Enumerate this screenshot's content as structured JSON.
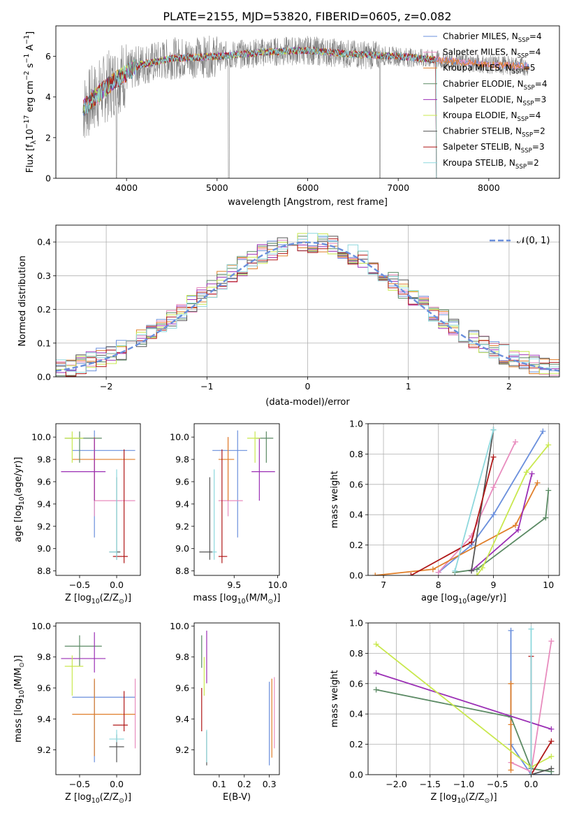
{
  "title": "PLATE=2155, MJD=53820, FIBERID=0605, z=0.082",
  "colors": {
    "chabrier_miles": "#6a8fdc",
    "salpeter_miles": "#e88cbe",
    "kroupa_miles": "#e07f2a",
    "chabrier_elodie": "#5b8a64",
    "salpeter_elodie": "#9b2fb5",
    "kroupa_elodie": "#c9e84e",
    "chabrier_stelib": "#555555",
    "salpeter_stelib": "#b01818",
    "kroupa_stelib": "#8ed8dd",
    "gaussian": "#6a8fdc",
    "data": "#808080"
  },
  "chart_data": [
    {
      "id": "spectrum",
      "type": "line",
      "xlabel": "wavelength [Angstrom, rest frame]",
      "ylabel_main": "Flux [f",
      "ylabel_sub": "λ",
      "ylabel_rest": "10",
      "ylabel_exp1": "−17",
      "ylabel_mid": " erg cm",
      "ylabel_exp2": "−2",
      "ylabel_mid2": " s",
      "ylabel_exp3": "−1",
      "ylabel_mid3": " A",
      "ylabel_exp4": "−1",
      "ylabel_end": "]",
      "xlim": [
        3220,
        8780
      ],
      "ylim": [
        0,
        7.5
      ],
      "xticks": [
        "4000",
        "5000",
        "6000",
        "7000",
        "8000"
      ],
      "yticks": [
        "0",
        "2",
        "4",
        "6"
      ],
      "grid": false,
      "legend_position": "top-right",
      "legend": [
        {
          "name": "Chabrier MILES, N",
          "sub": "SSP",
          "val": "=4",
          "color_key": "chabrier_miles"
        },
        {
          "name": "Salpeter MILES, N",
          "sub": "SSP",
          "val": "=4",
          "color_key": "salpeter_miles"
        },
        {
          "name": "Kroupa MILES, N",
          "sub": "SSP",
          "val": "=5",
          "color_key": "kroupa_miles"
        },
        {
          "name": "Chabrier ELODIE, N",
          "sub": "SSP",
          "val": "=4",
          "color_key": "chabrier_elodie"
        },
        {
          "name": "Salpeter ELODIE, N",
          "sub": "SSP",
          "val": "=3",
          "color_key": "salpeter_elodie"
        },
        {
          "name": "Kroupa ELODIE, N",
          "sub": "SSP",
          "val": "=4",
          "color_key": "kroupa_elodie"
        },
        {
          "name": "Chabrier STELIB, N",
          "sub": "SSP",
          "val": "=2",
          "color_key": "chabrier_stelib"
        },
        {
          "name": "Salpeter STELIB, N",
          "sub": "SSP",
          "val": "=3",
          "color_key": "salpeter_stelib"
        },
        {
          "name": "Kroupa STELIB, N",
          "sub": "SSP",
          "val": "=2",
          "color_key": "kroupa_stelib"
        }
      ],
      "data_range": [
        3520,
        8450
      ],
      "continuum": [
        [
          3520,
          3.4
        ],
        [
          3700,
          4.2
        ],
        [
          3900,
          4.9
        ],
        [
          4050,
          5.3
        ],
        [
          4150,
          5.6
        ],
        [
          4300,
          5.7
        ],
        [
          4500,
          5.9
        ],
        [
          5000,
          6.0
        ],
        [
          5500,
          6.2
        ],
        [
          6000,
          6.3
        ],
        [
          6500,
          6.1
        ],
        [
          7000,
          6.0
        ],
        [
          7500,
          5.8
        ],
        [
          8000,
          5.6
        ],
        [
          8450,
          5.5
        ]
      ]
    },
    {
      "id": "residuals",
      "type": "step",
      "xlabel": "(data-model)/error",
      "ylabel": "Normed distribution",
      "xlim": [
        -2.5,
        2.5
      ],
      "ylim": [
        0,
        0.45
      ],
      "xticks": [
        "−2",
        "−1",
        "0",
        "1",
        "2"
      ],
      "yticks": [
        "0.0",
        "0.1",
        "0.2",
        "0.3",
        "0.4"
      ],
      "grid": true,
      "legend_position": "top-right",
      "gaussian_label": "𝒩(0, 1)",
      "bin_width": 0.1
    },
    {
      "id": "age_vs_Z",
      "type": "scatter",
      "xlabel": "Z [log",
      "xlabel_sub": "10",
      "xlabel_rest": "(Z/Z",
      "xlabel_sun": "⊙",
      "xlabel_end": ")]",
      "ylabel": "age  [log",
      "ylabel_sub": "10",
      "ylabel_rest": "(age/yr)]",
      "xlim": [
        -0.82,
        0.32
      ],
      "ylim": [
        8.76,
        10.12
      ],
      "xticks": [
        "−0.5",
        "0.0"
      ],
      "yticks": [
        "8.8",
        "9.0",
        "9.2",
        "9.4",
        "9.6",
        "9.8",
        "10.0"
      ],
      "grid": false,
      "points": [
        {
          "c": "chabrier_miles",
          "x": -0.3,
          "xe": [
            -0.6,
            0.25
          ],
          "y": 9.88,
          "ye": [
            9.1,
            10.06
          ]
        },
        {
          "c": "salpeter_miles",
          "x": -0.3,
          "xe": [
            -0.3,
            0.25
          ],
          "y": 9.43,
          "ye": [
            9.29,
            10.0
          ]
        },
        {
          "c": "kroupa_miles",
          "x": -0.3,
          "xe": [
            -0.6,
            0.25
          ],
          "y": 9.8,
          "ye": [
            9.43,
            10.0
          ]
        },
        {
          "c": "chabrier_elodie",
          "x": -0.5,
          "xe": [
            -0.7,
            -0.2
          ],
          "y": 9.99,
          "ye": [
            9.77,
            10.05
          ]
        },
        {
          "c": "salpeter_elodie",
          "x": -0.3,
          "xe": [
            -0.75,
            -0.15
          ],
          "y": 9.69,
          "ye": [
            9.43,
            9.99
          ]
        },
        {
          "c": "kroupa_elodie",
          "x": -0.6,
          "xe": [
            -0.7,
            -0.45
          ],
          "y": 9.99,
          "ye": [
            9.77,
            10.05
          ]
        },
        {
          "c": "chabrier_stelib",
          "x": 0.0,
          "xe": [
            -0.1,
            0.05
          ],
          "y": 8.97,
          "ye": [
            8.9,
            9.64
          ]
        },
        {
          "c": "salpeter_stelib",
          "x": 0.1,
          "xe": [
            -0.05,
            0.15
          ],
          "y": 8.93,
          "ye": [
            8.87,
            9.89
          ]
        },
        {
          "c": "kroupa_stelib",
          "x": 0.0,
          "xe": [
            -0.1,
            0.0
          ],
          "y": 8.97,
          "ye": [
            8.9,
            9.71
          ]
        }
      ]
    },
    {
      "id": "age_vs_mass",
      "type": "scatter",
      "xlabel": "mass [log",
      "xlabel_sub": "10",
      "xlabel_rest": "(M/M",
      "xlabel_sun": "⊙",
      "xlabel_end": ")]",
      "xlim": [
        9.04,
        10.02
      ],
      "ylim": [
        8.76,
        10.12
      ],
      "xticks": [
        "9.5",
        "10.0"
      ],
      "yticks": [
        "8.8",
        "9.0",
        "9.2",
        "9.4",
        "9.6",
        "9.8",
        "10.0"
      ],
      "grid": false,
      "points": [
        {
          "c": "chabrier_miles",
          "x": 9.54,
          "xe": [
            9.25,
            9.65
          ],
          "y": 9.88,
          "ye": [
            9.1,
            10.06
          ]
        },
        {
          "c": "salpeter_miles",
          "x": 9.43,
          "xe": [
            9.32,
            9.6
          ],
          "y": 9.43,
          "ye": [
            9.29,
            10.0
          ]
        },
        {
          "c": "kroupa_miles",
          "x": 9.43,
          "xe": [
            9.32,
            9.5
          ],
          "y": 9.8,
          "ye": [
            9.43,
            10.0
          ]
        },
        {
          "c": "chabrier_elodie",
          "x": 9.87,
          "xe": [
            9.75,
            9.95
          ],
          "y": 9.99,
          "ye": [
            9.77,
            10.05
          ]
        },
        {
          "c": "salpeter_elodie",
          "x": 9.79,
          "xe": [
            9.7,
            9.97
          ],
          "y": 9.69,
          "ye": [
            9.43,
            9.99
          ]
        },
        {
          "c": "kroupa_elodie",
          "x": 9.74,
          "xe": [
            9.65,
            9.8
          ],
          "y": 9.99,
          "ye": [
            9.77,
            10.05
          ]
        },
        {
          "c": "chabrier_stelib",
          "x": 9.22,
          "xe": [
            9.1,
            9.25
          ],
          "y": 8.97,
          "ye": [
            8.9,
            9.64
          ]
        },
        {
          "c": "salpeter_stelib",
          "x": 9.36,
          "xe": [
            9.32,
            9.42
          ],
          "y": 8.93,
          "ye": [
            8.87,
            9.89
          ]
        },
        {
          "c": "kroupa_stelib",
          "x": 9.27,
          "xe": [
            9.25,
            9.3
          ],
          "y": 8.97,
          "ye": [
            8.9,
            9.71
          ]
        }
      ]
    },
    {
      "id": "weight_vs_age",
      "type": "line",
      "xlabel": "age  [log",
      "xlabel_sub": "10",
      "xlabel_rest": "(age/yr)]",
      "ylabel": "mass weight",
      "xlim": [
        6.72,
        10.2
      ],
      "ylim": [
        0,
        1.0
      ],
      "xticks": [
        "7",
        "8",
        "9",
        "10"
      ],
      "yticks": [
        "0.0",
        "0.2",
        "0.4",
        "0.6",
        "0.8",
        "1.0"
      ],
      "grid": true,
      "series": [
        {
          "c": "chabrier_miles",
          "x": [
            8.0,
            8.6,
            9.0,
            9.9
          ],
          "y": [
            0.02,
            0.2,
            0.4,
            0.95
          ]
        },
        {
          "c": "salpeter_miles",
          "x": [
            8.0,
            8.6,
            9.0,
            9.4
          ],
          "y": [
            0.02,
            0.26,
            0.58,
            0.88
          ]
        },
        {
          "c": "kroupa_miles",
          "x": [
            6.85,
            7.9,
            9.4,
            9.8
          ],
          "y": [
            0.0,
            0.04,
            0.33,
            0.61
          ]
        },
        {
          "c": "chabrier_elodie",
          "x": [
            8.3,
            8.7,
            9.95,
            10.0
          ],
          "y": [
            0.02,
            0.04,
            0.38,
            0.56
          ]
        },
        {
          "c": "salpeter_elodie",
          "x": [
            8.6,
            9.45,
            9.7
          ],
          "y": [
            0.03,
            0.3,
            0.67
          ]
        },
        {
          "c": "kroupa_elodie",
          "x": [
            8.7,
            8.8,
            9.6,
            10.0
          ],
          "y": [
            0.0,
            0.05,
            0.68,
            0.86
          ]
        },
        {
          "c": "chabrier_stelib",
          "x": [
            8.6,
            9.0
          ],
          "y": [
            0.03,
            0.96
          ]
        },
        {
          "c": "salpeter_stelib",
          "x": [
            7.5,
            8.6,
            9.0
          ],
          "y": [
            0.0,
            0.22,
            0.78
          ]
        },
        {
          "c": "kroupa_stelib",
          "x": [
            8.3,
            9.0
          ],
          "y": [
            0.03,
            0.96
          ]
        }
      ]
    },
    {
      "id": "mass_vs_Z",
      "type": "scatter",
      "xlabel": "Z [log",
      "xlabel_sub": "10",
      "xlabel_rest": "(Z/Z",
      "xlabel_sun": "⊙",
      "xlabel_end": ")]",
      "ylabel": "mass [log",
      "ylabel_sub": "10",
      "ylabel_rest": "(M/M",
      "ylabel_sun": "⊙",
      "ylabel_end": ")]",
      "xlim": [
        -0.82,
        0.32
      ],
      "ylim": [
        9.04,
        10.02
      ],
      "xticks": [
        "−0.5",
        "0.0"
      ],
      "yticks": [
        "9.2",
        "9.4",
        "9.6",
        "9.8",
        "10.0"
      ],
      "grid": false,
      "points": [
        {
          "c": "chabrier_miles",
          "x": -0.3,
          "xe": [
            -0.6,
            0.25
          ],
          "y": 9.54,
          "ye": [
            9.12,
            9.65
          ]
        },
        {
          "c": "salpeter_miles",
          "x": 0.25,
          "xe": [
            0.25,
            0.25
          ],
          "y": 9.43,
          "ye": [
            9.21,
            9.66
          ]
        },
        {
          "c": "kroupa_miles",
          "x": -0.3,
          "xe": [
            -0.6,
            0.25
          ],
          "y": 9.43,
          "ye": [
            9.16,
            9.66
          ]
        },
        {
          "c": "chabrier_elodie",
          "x": -0.5,
          "xe": [
            -0.7,
            -0.2
          ],
          "y": 9.87,
          "ye": [
            9.74,
            9.94
          ]
        },
        {
          "c": "salpeter_elodie",
          "x": -0.3,
          "xe": [
            -0.75,
            -0.15
          ],
          "y": 9.79,
          "ye": [
            9.7,
            9.96
          ]
        },
        {
          "c": "kroupa_elodie",
          "x": -0.6,
          "xe": [
            -0.7,
            -0.45
          ],
          "y": 9.74,
          "ye": [
            9.55,
            9.81
          ]
        },
        {
          "c": "chabrier_stelib",
          "x": 0.0,
          "xe": [
            -0.1,
            0.1
          ],
          "y": 9.22,
          "ye": [
            9.12,
            9.3
          ]
        },
        {
          "c": "salpeter_stelib",
          "x": 0.1,
          "xe": [
            -0.05,
            0.15
          ],
          "y": 9.36,
          "ye": [
            9.32,
            9.58
          ]
        },
        {
          "c": "kroupa_stelib",
          "x": 0.0,
          "xe": [
            -0.1,
            0.1
          ],
          "y": 9.27,
          "ye": [
            9.25,
            9.33
          ]
        }
      ]
    },
    {
      "id": "mass_vs_ebv",
      "type": "scatter",
      "xlabel": "E(B-V)",
      "xlim": [
        0.0,
        0.34
      ],
      "ylim": [
        9.04,
        10.02
      ],
      "xticks": [
        "0.1",
        "0.2",
        "0.3"
      ],
      "yticks": [
        "9.2",
        "9.4",
        "9.6",
        "9.8",
        "10.0"
      ],
      "grid": false,
      "points": [
        {
          "c": "chabrier_miles",
          "x": 0.3,
          "ye": [
            9.1,
            9.64
          ]
        },
        {
          "c": "salpeter_miles",
          "x": 0.32,
          "ye": [
            9.21,
            9.67
          ]
        },
        {
          "c": "kroupa_miles",
          "x": 0.31,
          "ye": [
            9.15,
            9.66
          ]
        },
        {
          "c": "chabrier_elodie",
          "x": 0.03,
          "ye": [
            9.73,
            9.94
          ]
        },
        {
          "c": "salpeter_elodie",
          "x": 0.05,
          "ye": [
            9.63,
            9.97
          ]
        },
        {
          "c": "kroupa_elodie",
          "x": 0.04,
          "ye": [
            9.55,
            9.8
          ]
        },
        {
          "c": "chabrier_stelib",
          "x": 0.05,
          "ye": [
            9.1,
            9.32
          ]
        },
        {
          "c": "salpeter_stelib",
          "x": 0.03,
          "ye": [
            9.32,
            9.6
          ]
        },
        {
          "c": "kroupa_stelib",
          "x": 0.05,
          "ye": [
            9.12,
            9.33
          ]
        }
      ]
    },
    {
      "id": "weight_vs_Z",
      "type": "line",
      "xlabel": "Z [log",
      "xlabel_sub": "10",
      "xlabel_rest": "(Z/Z",
      "xlabel_sun": "⊙",
      "xlabel_end": ")]",
      "ylabel": "mass weight",
      "xlim": [
        -2.42,
        0.42
      ],
      "ylim": [
        0,
        1.0
      ],
      "xticks": [
        "−2.0",
        "−1.5",
        "−1.0",
        "−0.5",
        "0.0"
      ],
      "yticks": [
        "0.0",
        "0.2",
        "0.4",
        "0.6",
        "0.8",
        "1.0"
      ],
      "grid": true,
      "series": [
        {
          "c": "chabrier_miles",
          "x": [
            -0.3,
            -0.3,
            0.0,
            0.3
          ],
          "y": [
            0.95,
            0.2,
            0.0,
            0.0
          ]
        },
        {
          "c": "salpeter_miles",
          "x": [
            -0.3,
            0.0,
            0.3
          ],
          "y": [
            0.08,
            0.02,
            0.88
          ]
        },
        {
          "c": "kroupa_miles",
          "x": [
            -0.3,
            -0.3,
            -0.3
          ],
          "y": [
            0.6,
            0.33,
            0.03
          ]
        },
        {
          "c": "chabrier_elodie",
          "x": [
            -2.3,
            -0.3,
            0.0,
            0.3
          ],
          "y": [
            0.56,
            0.38,
            0.04,
            0.02
          ]
        },
        {
          "c": "salpeter_elodie",
          "x": [
            -2.3,
            0.3
          ],
          "y": [
            0.67,
            0.3
          ]
        },
        {
          "c": "kroupa_elodie",
          "x": [
            -2.3,
            0.0,
            0.3
          ],
          "y": [
            0.86,
            0.05,
            0.12
          ]
        },
        {
          "c": "chabrier_stelib",
          "x": [
            0.0,
            0.3
          ],
          "y": [
            0.0,
            0.04
          ]
        },
        {
          "c": "salpeter_stelib",
          "x": [
            0.0,
            0.0,
            0.3
          ],
          "y": [
            0.78,
            0.0,
            0.22
          ]
        },
        {
          "c": "kroupa_stelib",
          "x": [
            0.0,
            0.0
          ],
          "y": [
            0.96,
            0.0
          ]
        }
      ]
    }
  ]
}
